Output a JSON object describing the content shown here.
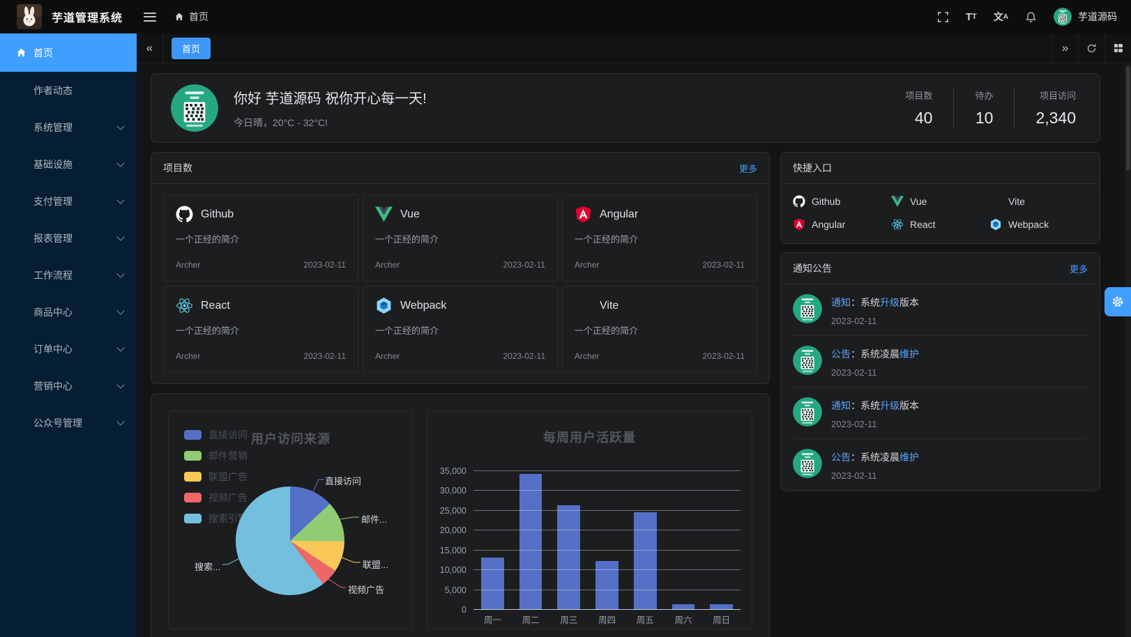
{
  "topbar": {
    "app_title": "芋道管理系统",
    "breadcrumb_home": "首页",
    "font_icon_big": "T",
    "font_icon_small": "T",
    "locale_icon_main": "文",
    "locale_icon_sub": "A",
    "username": "芋道源码"
  },
  "sidebar": {
    "items": [
      {
        "label": "首页",
        "active": true,
        "children": false
      },
      {
        "label": "作者动态",
        "active": false,
        "children": false
      },
      {
        "label": "系统管理",
        "active": false,
        "children": true
      },
      {
        "label": "基础设施",
        "active": false,
        "children": true
      },
      {
        "label": "支付管理",
        "active": false,
        "children": true
      },
      {
        "label": "报表管理",
        "active": false,
        "children": true
      },
      {
        "label": "工作流程",
        "active": false,
        "children": true
      },
      {
        "label": "商品中心",
        "active": false,
        "children": true
      },
      {
        "label": "订单中心",
        "active": false,
        "children": true
      },
      {
        "label": "营销中心",
        "active": false,
        "children": true
      },
      {
        "label": "公众号管理",
        "active": false,
        "children": true
      }
    ]
  },
  "tabbar": {
    "tabs": [
      {
        "label": "首页",
        "active": true
      }
    ],
    "collapse_left": "«",
    "expand_right": "»"
  },
  "greeting": {
    "title": "你好 芋道源码 祝你开心每一天!",
    "subtitle": "今日晴，20°C - 32°C!",
    "stats": [
      {
        "label": "项目数",
        "value": "40"
      },
      {
        "label": "待办",
        "value": "10"
      },
      {
        "label": "项目访问",
        "value": "2,340"
      }
    ]
  },
  "projects": {
    "title": "项目数",
    "more": "更多",
    "items": [
      {
        "name": "Github",
        "icon": "github-icon",
        "desc": "一个正经的简介",
        "author": "Archer",
        "date": "2023-02-11"
      },
      {
        "name": "Vue",
        "icon": "vue-icon",
        "desc": "一个正经的简介",
        "author": "Archer",
        "date": "2023-02-11"
      },
      {
        "name": "Angular",
        "icon": "angular-icon",
        "desc": "一个正经的简介",
        "author": "Archer",
        "date": "2023-02-11"
      },
      {
        "name": "React",
        "icon": "react-icon",
        "desc": "一个正经的简介",
        "author": "Archer",
        "date": "2023-02-11"
      },
      {
        "name": "Webpack",
        "icon": "webpack-icon",
        "desc": "一个正经的简介",
        "author": "Archer",
        "date": "2023-02-11"
      },
      {
        "name": "Vite",
        "icon": "vite-icon",
        "desc": "一个正经的简介",
        "author": "Archer",
        "date": "2023-02-11"
      }
    ]
  },
  "shortcuts": {
    "title": "快捷入口",
    "items": [
      {
        "name": "Github",
        "icon": "github-icon"
      },
      {
        "name": "Vue",
        "icon": "vue-icon"
      },
      {
        "name": "Vite",
        "icon": "vite-icon"
      },
      {
        "name": "Angular",
        "icon": "angular-icon"
      },
      {
        "name": "React",
        "icon": "react-icon"
      },
      {
        "name": "Webpack",
        "icon": "webpack-icon"
      }
    ]
  },
  "notices": {
    "title": "通知公告",
    "more": "更多",
    "items": [
      {
        "tag": "通知",
        "pre": "：系统",
        "link": "升级",
        "post": "版本",
        "date": "2023-02-11"
      },
      {
        "tag": "公告",
        "pre": "：系统凌晨",
        "link": "维护",
        "post": "",
        "date": "2023-02-11"
      },
      {
        "tag": "通知",
        "pre": "：系统",
        "link": "升级",
        "post": "版本",
        "date": "2023-02-11"
      },
      {
        "tag": "公告",
        "pre": "：系统凌晨",
        "link": "维护",
        "post": "",
        "date": "2023-02-11"
      }
    ]
  },
  "chart_data": [
    {
      "type": "pie",
      "title": "用户访问来源",
      "legend_position": "left",
      "series": [
        {
          "name": "直接访问",
          "value": 335
        },
        {
          "name": "邮件营销",
          "value": 310
        },
        {
          "name": "联盟广告",
          "value": 234
        },
        {
          "name": "视频广告",
          "value": 135
        },
        {
          "name": "搜索引擎",
          "value": 1548
        }
      ],
      "colors": [
        "#5470C6",
        "#91CC75",
        "#FAC858",
        "#EE6666",
        "#73C0DE"
      ],
      "callout_labels": [
        "直接访问",
        "邮件...",
        "联盟...",
        "视频广告",
        "搜索..."
      ]
    },
    {
      "type": "bar",
      "title": "每周用户活跃量",
      "categories": [
        "周一",
        "周二",
        "周三",
        "周四",
        "周五",
        "周六",
        "周日"
      ],
      "values": [
        13200,
        34300,
        26300,
        12400,
        24700,
        1400,
        1400
      ],
      "ylim": [
        0,
        35000
      ],
      "ytick_step": 5000,
      "bar_color": "#5470C6",
      "grid": true
    }
  ]
}
